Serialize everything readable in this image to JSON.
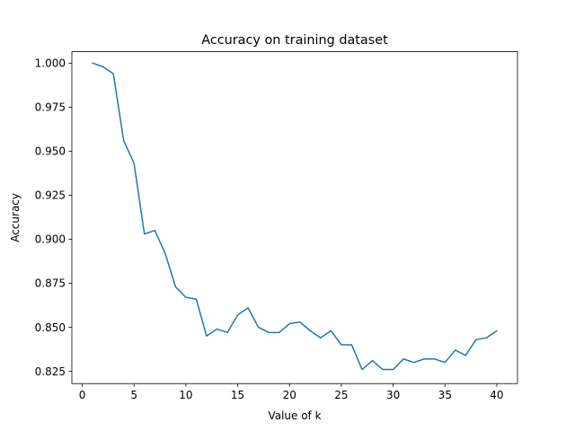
{
  "chart_data": {
    "type": "line",
    "title": "Accuracy on training dataset",
    "xlabel": "Value of k",
    "ylabel": "Accuracy",
    "xlim": [
      -1,
      42
    ],
    "ylim": [
      0.818,
      1.0065
    ],
    "xticks": [
      0,
      5,
      10,
      15,
      20,
      25,
      30,
      35,
      40
    ],
    "yticks": [
      0.825,
      0.85,
      0.875,
      0.9,
      0.925,
      0.95,
      0.975,
      1.0
    ],
    "ytick_labels": [
      "0.825",
      "0.850",
      "0.875",
      "0.900",
      "0.925",
      "0.950",
      "0.975",
      "1.000"
    ],
    "grid": false,
    "series": [
      {
        "color": "#1f77b4",
        "x": [
          1,
          2,
          3,
          4,
          5,
          6,
          7,
          8,
          9,
          10,
          11,
          12,
          13,
          14,
          15,
          16,
          17,
          18,
          19,
          20,
          21,
          22,
          23,
          24,
          25,
          26,
          27,
          28,
          29,
          30,
          31,
          32,
          33,
          34,
          35,
          36,
          37,
          38,
          39,
          40
        ],
        "values": [
          1.0,
          0.998,
          0.994,
          0.956,
          0.943,
          0.903,
          0.905,
          0.892,
          0.873,
          0.867,
          0.866,
          0.845,
          0.849,
          0.847,
          0.857,
          0.861,
          0.85,
          0.847,
          0.847,
          0.852,
          0.853,
          0.848,
          0.844,
          0.848,
          0.84,
          0.84,
          0.826,
          0.831,
          0.826,
          0.826,
          0.832,
          0.83,
          0.832,
          0.832,
          0.83,
          0.837,
          0.834,
          0.843,
          0.844,
          0.848
        ]
      }
    ]
  }
}
